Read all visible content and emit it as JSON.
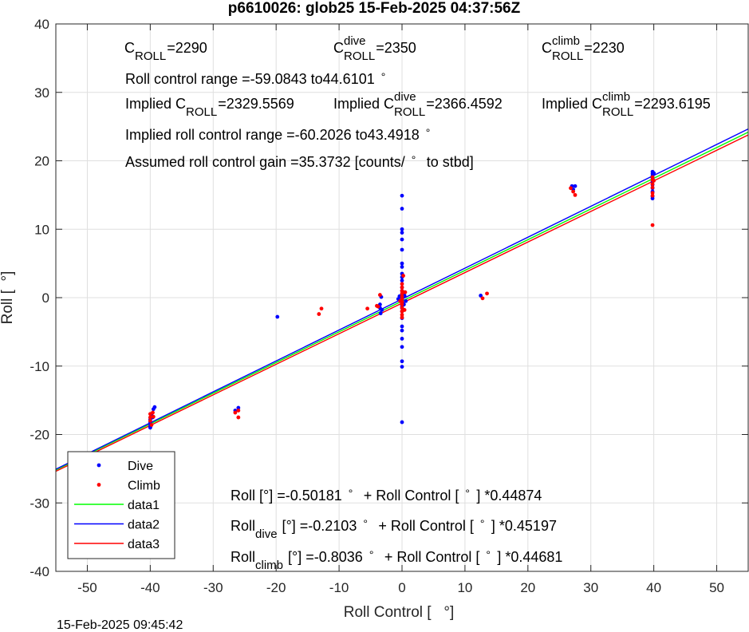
{
  "chart_data": {
    "type": "scatter",
    "title": "p6610026: glob25 15-Feb-2025 04:37:56Z",
    "xlabel": "Roll Control [   °]",
    "ylabel": "Roll [  °]",
    "xlim": [
      -55,
      55
    ],
    "ylim": [
      -40,
      40
    ],
    "xticks": [
      -50,
      -40,
      -30,
      -20,
      -10,
      0,
      10,
      20,
      30,
      40,
      50
    ],
    "yticks": [
      -40,
      -30,
      -20,
      -10,
      0,
      10,
      20,
      30,
      40
    ],
    "xtick_labels": [
      "-50",
      "-40",
      "-30",
      "-20",
      "-10",
      "0",
      "10",
      "20",
      "30",
      "40",
      "50"
    ],
    "ytick_labels": [
      "-40",
      "-30",
      "-20",
      "-10",
      "0",
      "10",
      "20",
      "30",
      "40"
    ],
    "grid": true,
    "legend_position": "bottom-left",
    "timestamp": "15-Feb-2025 09:45:42",
    "series": [
      {
        "name": "Dive",
        "kind": "points",
        "color": "#0000ff",
        "points": [
          [
            -40,
            -18.6
          ],
          [
            -40,
            -19.0
          ],
          [
            -40,
            -18.2
          ],
          [
            -40,
            -17.8
          ],
          [
            -39.6,
            -17.5
          ],
          [
            -39.5,
            -16.3
          ],
          [
            -39.3,
            -16.0
          ],
          [
            -39.8,
            -17.0
          ],
          [
            -40,
            -18.9
          ],
          [
            -26.5,
            -16.5
          ],
          [
            -26,
            -16.1
          ],
          [
            -19.8,
            -2.8
          ],
          [
            -3.5,
            -1.5
          ],
          [
            -3.4,
            -2.3
          ],
          [
            -3.2,
            -1.8
          ],
          [
            -3.3,
            0.1
          ],
          [
            -3.5,
            -1.0
          ],
          [
            0,
            14.9
          ],
          [
            0,
            13.0
          ],
          [
            0,
            10.0
          ],
          [
            0,
            9.5
          ],
          [
            0,
            8.5
          ],
          [
            0,
            7.0
          ],
          [
            0,
            5.0
          ],
          [
            0,
            4.5
          ],
          [
            0,
            3.5
          ],
          [
            0,
            3.0
          ],
          [
            0,
            2.5
          ],
          [
            0,
            1.5
          ],
          [
            0,
            1.0
          ],
          [
            0,
            0.5
          ],
          [
            0,
            0.0
          ],
          [
            0,
            -0.3
          ],
          [
            0,
            -0.7
          ],
          [
            0,
            -1.2
          ],
          [
            0,
            -1.5
          ],
          [
            0,
            -2.0
          ],
          [
            0,
            -3.0
          ],
          [
            0,
            -4.2
          ],
          [
            0,
            -4.8
          ],
          [
            0,
            -6.0
          ],
          [
            0,
            -7.2
          ],
          [
            0,
            -9.3
          ],
          [
            0,
            -10.1
          ],
          [
            0,
            -18.2
          ],
          [
            0.4,
            0.3
          ],
          [
            0.6,
            -0.5
          ],
          [
            -0.4,
            0.2
          ],
          [
            -0.6,
            -0.2
          ],
          [
            0.3,
            -1.0
          ],
          [
            12.5,
            0.3
          ],
          [
            27,
            16.3
          ],
          [
            27.5,
            16.3
          ],
          [
            27.2,
            15.8
          ],
          [
            39.8,
            18.4
          ],
          [
            39.8,
            18.1
          ],
          [
            39.8,
            17.8
          ],
          [
            39.8,
            17.5
          ],
          [
            39.8,
            17.0
          ],
          [
            39.8,
            16.5
          ],
          [
            39.8,
            16.0
          ],
          [
            39.8,
            15.5
          ],
          [
            39.8,
            14.8
          ],
          [
            39.8,
            14.5
          ],
          [
            40,
            18.2
          ]
        ]
      },
      {
        "name": "Climb",
        "kind": "points",
        "color": "#ff0000",
        "points": [
          [
            -40,
            -17.0
          ],
          [
            -40,
            -17.5
          ],
          [
            -40,
            -18.0
          ],
          [
            -39.5,
            -17.4
          ],
          [
            -39.8,
            -18.6
          ],
          [
            -39.6,
            -16.8
          ],
          [
            -26.5,
            -16.8
          ],
          [
            -26,
            -16.5
          ],
          [
            -26,
            -17.5
          ],
          [
            -13.2,
            -2.4
          ],
          [
            -12.8,
            -1.6
          ],
          [
            -5.5,
            -1.6
          ],
          [
            -3.8,
            -1.3
          ],
          [
            -3.5,
            0.4
          ],
          [
            -4.0,
            -1.2
          ],
          [
            0,
            2.0
          ],
          [
            0,
            1.5
          ],
          [
            0,
            1.0
          ],
          [
            0,
            0.6
          ],
          [
            0,
            0.2
          ],
          [
            0,
            -0.2
          ],
          [
            0,
            -0.6
          ],
          [
            0,
            -1.0
          ],
          [
            0,
            -1.5
          ],
          [
            0,
            -2.0
          ],
          [
            0,
            -2.5
          ],
          [
            0,
            -2.9
          ],
          [
            0.5,
            0.8
          ],
          [
            -0.3,
            -0.5
          ],
          [
            0.4,
            -1.8
          ],
          [
            0.2,
            3.2
          ],
          [
            12.8,
            -0.1
          ],
          [
            13.5,
            0.6
          ],
          [
            26.8,
            16.0
          ],
          [
            27.2,
            15.5
          ],
          [
            27.5,
            15.0
          ],
          [
            39.8,
            17.6
          ],
          [
            39.8,
            17.2
          ],
          [
            39.8,
            16.6
          ],
          [
            39.8,
            16.1
          ],
          [
            39.8,
            15.3
          ],
          [
            39.8,
            14.9
          ],
          [
            39.8,
            10.6
          ],
          [
            40,
            17.1
          ]
        ]
      },
      {
        "name": "data1",
        "kind": "line",
        "color": "#00ff00",
        "intercept": -0.50181,
        "slope": 0.44874
      },
      {
        "name": "data2",
        "kind": "line",
        "color": "#0000ff",
        "intercept": -0.2103,
        "slope": 0.45197
      },
      {
        "name": "data3",
        "kind": "line",
        "color": "#ff0000",
        "intercept": -0.8036,
        "slope": 0.44681
      }
    ],
    "annotations": [
      {
        "id": "c-roll",
        "text": "C",
        "parts": [
          {
            "t": "C",
            "s": "n"
          },
          {
            "t": "ROLL",
            "s": "sub"
          },
          {
            "t": "=2290",
            "s": "n"
          }
        ]
      },
      {
        "id": "c-roll-dive",
        "text": "C",
        "parts": [
          {
            "t": "C",
            "s": "n"
          },
          {
            "t": "dive",
            "s": "sup"
          },
          {
            "t": "ROLL",
            "s": "sub"
          },
          {
            "t": "=2350",
            "s": "n"
          }
        ]
      },
      {
        "id": "c-roll-climb",
        "text": "C",
        "parts": [
          {
            "t": "C",
            "s": "n"
          },
          {
            "t": "climb",
            "s": "sup"
          },
          {
            "t": "ROLL",
            "s": "sub"
          },
          {
            "t": "=2230",
            "s": "n"
          }
        ]
      },
      {
        "id": "roll-control-range",
        "text": "Roll control range =-59.0843 to44.6101",
        "parts": [
          {
            "t": "Roll control range =-59.0843 to44.6101",
            "s": "n"
          },
          {
            "t": "°",
            "s": "gap"
          }
        ]
      },
      {
        "id": "implied-c-roll",
        "text": "Implied C",
        "parts": [
          {
            "t": "Implied C",
            "s": "n"
          },
          {
            "t": "ROLL",
            "s": "sub"
          },
          {
            "t": "=2329.5569",
            "s": "n"
          }
        ]
      },
      {
        "id": "implied-c-roll-dive",
        "text": "Implied C",
        "parts": [
          {
            "t": "Implied C",
            "s": "n"
          },
          {
            "t": "dive",
            "s": "sup"
          },
          {
            "t": "ROLL",
            "s": "sub"
          },
          {
            "t": "=2366.4592",
            "s": "n"
          }
        ]
      },
      {
        "id": "implied-c-roll-climb",
        "text": "Implied C",
        "parts": [
          {
            "t": "Implied C",
            "s": "n"
          },
          {
            "t": "climb",
            "s": "sup"
          },
          {
            "t": "ROLL",
            "s": "sub"
          },
          {
            "t": "=2293.6195",
            "s": "n"
          }
        ]
      },
      {
        "id": "implied-roll-control-range",
        "text": "Implied roll control range =-60.2026 to43.4918",
        "parts": [
          {
            "t": "Implied roll control range =-60.2026 to43.4918",
            "s": "n"
          },
          {
            "t": "°",
            "s": "gap"
          }
        ]
      },
      {
        "id": "assumed-gain",
        "text": "Assumed roll control gain =35.3732 [counts/",
        "parts": [
          {
            "t": "Assumed roll control gain =35.3732 [counts/",
            "s": "n"
          },
          {
            "t": "°",
            "s": "gap"
          },
          {
            "t": " to stbd]",
            "s": "n"
          }
        ]
      },
      {
        "id": "fit-all",
        "text": "Roll [",
        "parts": [
          {
            "t": "Roll [",
            "s": "n"
          },
          {
            "t": "°",
            "s": "n"
          },
          {
            "t": "] =-0.50181",
            "s": "n"
          },
          {
            "t": "°",
            "s": "gap"
          },
          {
            "t": " + Roll Control [",
            "s": "n"
          },
          {
            "t": "°",
            "s": "gap"
          },
          {
            "t": "] *0.44874",
            "s": "n"
          }
        ]
      },
      {
        "id": "fit-dive",
        "text": "Roll",
        "parts": [
          {
            "t": "Roll",
            "s": "n"
          },
          {
            "t": "dive",
            "s": "sub"
          },
          {
            "t": " [",
            "s": "n"
          },
          {
            "t": "°",
            "s": "n"
          },
          {
            "t": "] =-0.2103",
            "s": "n"
          },
          {
            "t": "°",
            "s": "gap"
          },
          {
            "t": " + Roll Control [",
            "s": "n"
          },
          {
            "t": "°",
            "s": "gap"
          },
          {
            "t": "] *0.45197",
            "s": "n"
          }
        ]
      },
      {
        "id": "fit-climb",
        "text": "Roll",
        "parts": [
          {
            "t": "Roll",
            "s": "n"
          },
          {
            "t": "climb",
            "s": "sub"
          },
          {
            "t": " [",
            "s": "n"
          },
          {
            "t": "°",
            "s": "n"
          },
          {
            "t": "] =-0.8036",
            "s": "n"
          },
          {
            "t": "°",
            "s": "gap"
          },
          {
            "t": " + Roll Control [",
            "s": "n"
          },
          {
            "t": "°",
            "s": "gap"
          },
          {
            "t": "] *0.44681",
            "s": "n"
          }
        ]
      }
    ]
  }
}
